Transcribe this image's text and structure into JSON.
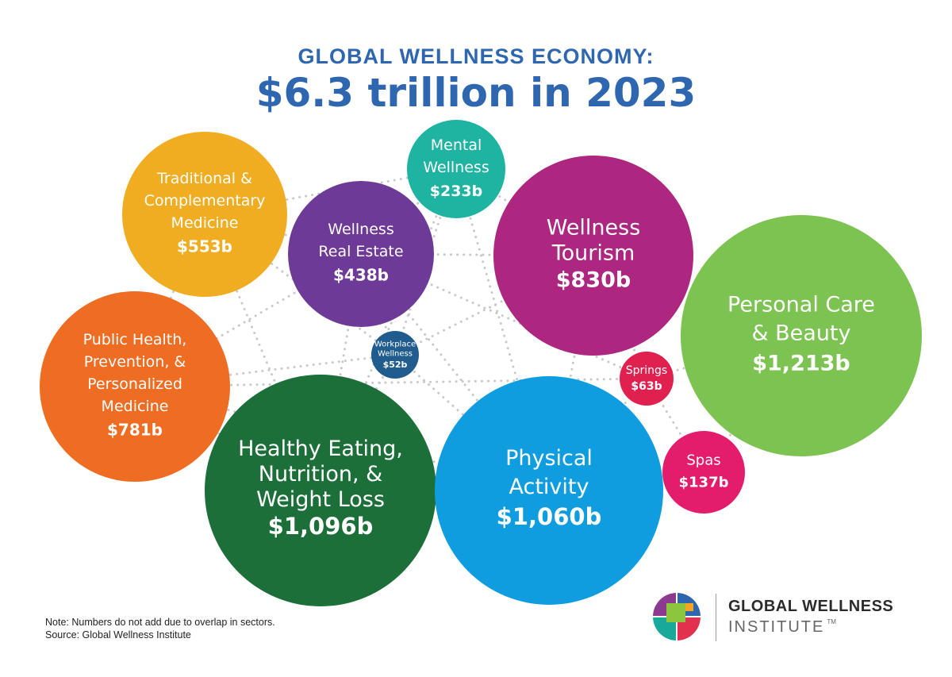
{
  "header": {
    "title": "GLOBAL WELLNESS ECONOMY:",
    "subtitle": "$6.3 trillion in 2023"
  },
  "chart_data": {
    "type": "bubble",
    "title": "GLOBAL WELLNESS ECONOMY:",
    "subtitle": "$6.3 trillion in 2023",
    "unit": "billion USD",
    "sectors": [
      {
        "label_lines": [
          "Traditional &",
          "Complementary",
          "Medicine"
        ],
        "value_label": "$553b",
        "value": 553,
        "color": "#f0ad22"
      },
      {
        "label_lines": [
          "Mental",
          "Wellness"
        ],
        "value_label": "$233b",
        "value": 233,
        "color": "#1fb3a2"
      },
      {
        "label_lines": [
          "Wellness",
          "Real Estate"
        ],
        "value_label": "$438b",
        "value": 438,
        "color": "#6e3a97"
      },
      {
        "label_lines": [
          "Wellness",
          "Tourism"
        ],
        "value_label": "$830b",
        "value": 830,
        "color": "#ad2680"
      },
      {
        "label_lines": [
          "Personal Care",
          "& Beauty"
        ],
        "value_label": "$1,213b",
        "value": 1213,
        "color": "#7dc352"
      },
      {
        "label_lines": [
          "Public Health,",
          "Prevention, &",
          "Personalized",
          "Medicine"
        ],
        "value_label": "$781b",
        "value": 781,
        "color": "#ef6c23"
      },
      {
        "label_lines": [
          "Workplace",
          "Wellness"
        ],
        "value_label": "$52b",
        "value": 52,
        "color": "#215c8e"
      },
      {
        "label_lines": [
          "Springs"
        ],
        "value_label": "$63b",
        "value": 63,
        "color": "#e0214f"
      },
      {
        "label_lines": [
          "Healthy Eating,",
          "Nutrition, &",
          "Weight Loss"
        ],
        "value_label": "$1,096b",
        "value": 1096,
        "color": "#1d6f3a"
      },
      {
        "label_lines": [
          "Physical",
          "Activity"
        ],
        "value_label": "$1,060b",
        "value": 1060,
        "color": "#0f9de0"
      },
      {
        "label_lines": [
          "Spas"
        ],
        "value_label": "$137b",
        "value": 137,
        "color": "#e41c6c"
      }
    ]
  },
  "footer": {
    "note": "Note: Numbers do not add due to overlap in sectors.",
    "source": "Source: Global Wellness Institute"
  },
  "logo": {
    "name": "GLOBAL WELLNESS",
    "sub": "INSTITUTE",
    "tm": "TM",
    "icon": "gwi-logo-icon"
  }
}
